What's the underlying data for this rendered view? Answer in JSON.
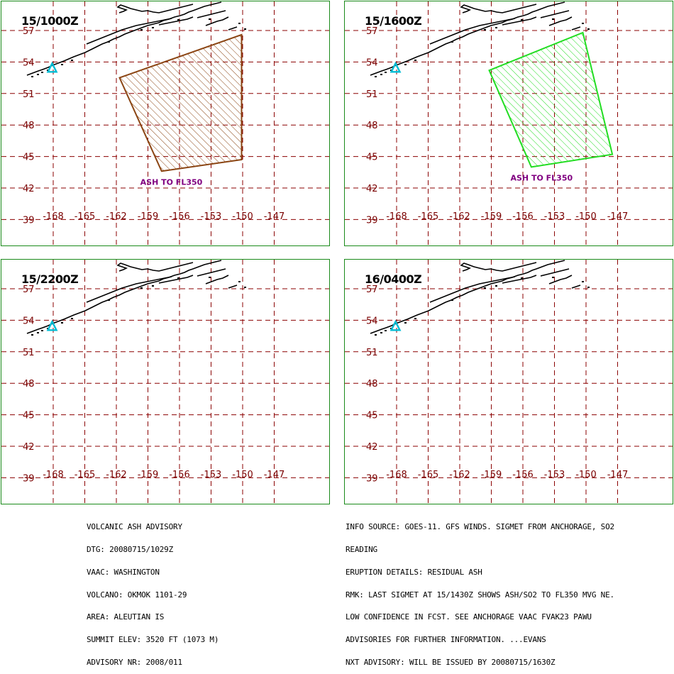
{
  "panels": [
    {
      "time_label": "15/1000Z",
      "ash_polygon": [
        [
          -161.7,
          52.5
        ],
        [
          -150.1,
          56.6
        ],
        [
          -150.1,
          44.7
        ],
        [
          -157.7,
          43.6
        ]
      ],
      "ash_color": "#8B4513",
      "ash_label": "ASH TO FL350"
    },
    {
      "time_label": "15/1600Z",
      "ash_polygon": [
        [
          -159.2,
          53.2
        ],
        [
          -150.3,
          56.8
        ],
        [
          -147.5,
          45.2
        ],
        [
          -155.2,
          44.0
        ]
      ],
      "ash_color": "#22dd22",
      "ash_label": "ASH TO FL350"
    },
    {
      "time_label": "15/2200Z",
      "ash_polygon": [],
      "ash_color": "",
      "ash_label": ""
    },
    {
      "time_label": "16/0400Z",
      "ash_polygon": [],
      "ash_color": "",
      "ash_label": ""
    }
  ],
  "map": {
    "lat_labels": [
      "57",
      "54",
      "51",
      "48",
      "45",
      "42",
      "39"
    ],
    "lon_labels": [
      "-168",
      "-165",
      "-162",
      "-159",
      "-156",
      "-153",
      "-150",
      "-147"
    ],
    "label_color": "#7a0000",
    "grid_color": "#8b0000",
    "volcano_marker_color": "#00bcd4",
    "ash_label_color": "#800080",
    "volcano_lon": -168.1,
    "volcano_lat": 53.4
  },
  "advisory_left": [
    "VOLCANIC ASH ADVISORY",
    "DTG: 20080715/1029Z",
    "VAAC: WASHINGTON",
    "VOLCANO: OKMOK 1101-29",
    "AREA: ALEUTIAN IS",
    "SUMMIT ELEV: 3520 FT (1073 M)",
    "ADVISORY NR: 2008/011"
  ],
  "advisory_right": [
    "INFO SOURCE: GOES-11. GFS WINDS. SIGMET FROM ANCHORAGE, SO2",
    "READING",
    "ERUPTION DETAILS: RESIDUAL ASH",
    "RMK: LAST SIGMET AT 15/1430Z SHOWS ASH/SO2 TO FL350 MVG NE.",
    "LOW CONFIDENCE IN FCST. SEE ANCHORAGE VAAC FVAK23 PAWU",
    "ADVISORIES FOR FURTHER INFORMATION. ...EVANS",
    "NXT ADVISORY: WILL BE ISSUED BY 20080715/1630Z"
  ]
}
